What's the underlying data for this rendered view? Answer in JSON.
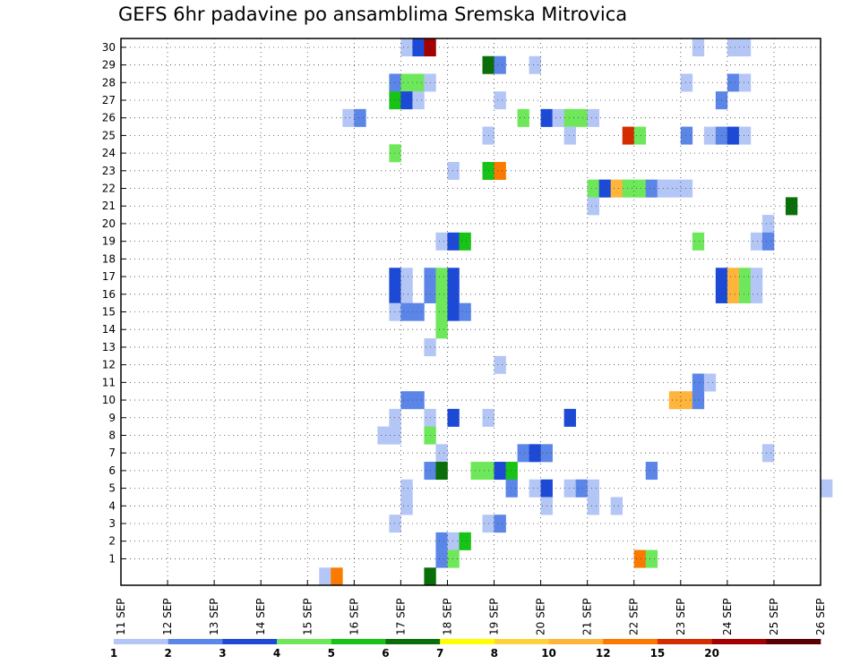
{
  "chart_data": {
    "type": "heatmap",
    "title": "GEFS 6hr padavine po ansamblima Sremska Mitrovica",
    "x_tick_labels": [
      "11 SEP",
      "12 SEP",
      "13 SEP",
      "14 SEP",
      "15 SEP",
      "16 SEP",
      "17 SEP",
      "18 SEP",
      "19 SEP",
      "20 SEP",
      "21 SEP",
      "22 SEP",
      "23 SEP",
      "24 SEP",
      "25 SEP",
      "26 SEP"
    ],
    "x_range_days": [
      11,
      26
    ],
    "y_tick_labels": [
      "1",
      "2",
      "3",
      "4",
      "5",
      "6",
      "7",
      "8",
      "9",
      "10",
      "11",
      "12",
      "13",
      "14",
      "15",
      "16",
      "17",
      "18",
      "19",
      "20",
      "21",
      "22",
      "23",
      "24",
      "25",
      "26",
      "27",
      "28",
      "29",
      "30"
    ],
    "grid": true,
    "legend": {
      "placement": "bottom",
      "labels": [
        "1",
        "2",
        "3",
        "4",
        "5",
        "6",
        "7",
        "8",
        "10",
        "12",
        "15",
        "20"
      ],
      "colors": [
        "#b3c6f5",
        "#5b86e8",
        "#1c4ad6",
        "#6ee85a",
        "#16c316",
        "#0a6e0a",
        "#ffff00",
        "#ffd23c",
        "#ffb43c",
        "#fa7a00",
        "#d42e00",
        "#a50000",
        "#5a0000"
      ]
    },
    "cells_note": "each cell: [ensemble member, time step (0.25 day, step 0 = 11 SEP 00z), color class index into legend.colors]",
    "cells": [
      [
        30,
        24,
        0
      ],
      [
        30,
        25,
        2
      ],
      [
        30,
        26,
        11
      ],
      [
        30,
        49,
        0
      ],
      [
        30,
        52,
        0
      ],
      [
        30,
        53,
        0
      ],
      [
        29,
        31,
        5
      ],
      [
        29,
        32,
        1
      ],
      [
        29,
        35,
        0
      ],
      [
        28,
        23,
        1
      ],
      [
        28,
        24,
        3
      ],
      [
        28,
        25,
        3
      ],
      [
        28,
        26,
        0
      ],
      [
        28,
        48,
        0
      ],
      [
        28,
        52,
        1
      ],
      [
        28,
        53,
        0
      ],
      [
        27,
        23,
        4
      ],
      [
        27,
        24,
        2
      ],
      [
        27,
        25,
        0
      ],
      [
        27,
        32,
        0
      ],
      [
        27,
        51,
        1
      ],
      [
        26,
        19,
        0
      ],
      [
        26,
        20,
        1
      ],
      [
        26,
        34,
        3
      ],
      [
        26,
        36,
        2
      ],
      [
        26,
        37,
        0
      ],
      [
        26,
        38,
        3
      ],
      [
        26,
        39,
        3
      ],
      [
        26,
        40,
        0
      ],
      [
        25,
        31,
        0
      ],
      [
        25,
        38,
        0
      ],
      [
        25,
        43,
        10
      ],
      [
        25,
        44,
        3
      ],
      [
        25,
        48,
        1
      ],
      [
        25,
        50,
        0
      ],
      [
        25,
        51,
        1
      ],
      [
        25,
        52,
        2
      ],
      [
        25,
        53,
        0
      ],
      [
        24,
        23,
        3
      ],
      [
        23,
        28,
        0
      ],
      [
        23,
        31,
        4
      ],
      [
        23,
        32,
        9
      ],
      [
        22,
        40,
        3
      ],
      [
        22,
        41,
        2
      ],
      [
        22,
        42,
        8
      ],
      [
        22,
        43,
        3
      ],
      [
        22,
        44,
        3
      ],
      [
        22,
        45,
        1
      ],
      [
        22,
        46,
        0
      ],
      [
        22,
        47,
        0
      ],
      [
        22,
        48,
        0
      ],
      [
        21,
        40,
        0
      ],
      [
        21,
        57,
        5
      ],
      [
        20,
        55,
        0
      ],
      [
        19,
        27,
        0
      ],
      [
        19,
        28,
        2
      ],
      [
        19,
        29,
        4
      ],
      [
        19,
        49,
        3
      ],
      [
        19,
        54,
        0
      ],
      [
        19,
        55,
        1
      ],
      [
        17,
        23,
        2
      ],
      [
        17,
        24,
        0
      ],
      [
        17,
        26,
        1
      ],
      [
        17,
        27,
        3
      ],
      [
        17,
        28,
        2
      ],
      [
        17,
        51,
        2
      ],
      [
        17,
        52,
        8
      ],
      [
        17,
        53,
        3
      ],
      [
        17,
        54,
        0
      ],
      [
        16,
        23,
        2
      ],
      [
        16,
        24,
        0
      ],
      [
        16,
        26,
        1
      ],
      [
        16,
        27,
        3
      ],
      [
        16,
        28,
        2
      ],
      [
        16,
        51,
        2
      ],
      [
        16,
        52,
        8
      ],
      [
        16,
        53,
        3
      ],
      [
        16,
        54,
        0
      ],
      [
        15,
        23,
        0
      ],
      [
        15,
        24,
        1
      ],
      [
        15,
        25,
        1
      ],
      [
        15,
        27,
        3
      ],
      [
        15,
        28,
        2
      ],
      [
        15,
        29,
        1
      ],
      [
        14,
        27,
        3
      ],
      [
        13,
        26,
        0
      ],
      [
        12,
        32,
        0
      ],
      [
        11,
        49,
        1
      ],
      [
        11,
        50,
        0
      ],
      [
        10,
        24,
        1
      ],
      [
        10,
        25,
        1
      ],
      [
        10,
        47,
        8
      ],
      [
        10,
        48,
        8
      ],
      [
        10,
        49,
        1
      ],
      [
        9,
        23,
        0
      ],
      [
        9,
        26,
        0
      ],
      [
        9,
        28,
        2
      ],
      [
        9,
        31,
        0
      ],
      [
        9,
        38,
        2
      ],
      [
        8,
        22,
        0
      ],
      [
        8,
        23,
        0
      ],
      [
        8,
        26,
        3
      ],
      [
        7,
        27,
        0
      ],
      [
        7,
        34,
        1
      ],
      [
        7,
        35,
        2
      ],
      [
        7,
        36,
        1
      ],
      [
        7,
        55,
        0
      ],
      [
        6,
        26,
        1
      ],
      [
        6,
        27,
        5
      ],
      [
        6,
        30,
        3
      ],
      [
        6,
        31,
        3
      ],
      [
        6,
        32,
        2
      ],
      [
        6,
        33,
        4
      ],
      [
        6,
        45,
        1
      ],
      [
        5,
        24,
        0
      ],
      [
        5,
        33,
        1
      ],
      [
        5,
        35,
        0
      ],
      [
        5,
        36,
        2
      ],
      [
        5,
        38,
        0
      ],
      [
        5,
        39,
        1
      ],
      [
        5,
        40,
        0
      ],
      [
        5,
        60,
        0
      ],
      [
        4,
        24,
        0
      ],
      [
        4,
        36,
        0
      ],
      [
        4,
        40,
        0
      ],
      [
        4,
        42,
        0
      ],
      [
        3,
        23,
        0
      ],
      [
        3,
        31,
        0
      ],
      [
        3,
        32,
        1
      ],
      [
        2,
        27,
        1
      ],
      [
        2,
        28,
        0
      ],
      [
        2,
        29,
        4
      ],
      [
        1,
        27,
        1
      ],
      [
        1,
        28,
        3
      ],
      [
        1,
        44,
        9
      ],
      [
        1,
        45,
        3
      ],
      [
        0,
        17,
        0
      ],
      [
        0,
        18,
        9
      ],
      [
        0,
        26,
        5
      ]
    ]
  }
}
